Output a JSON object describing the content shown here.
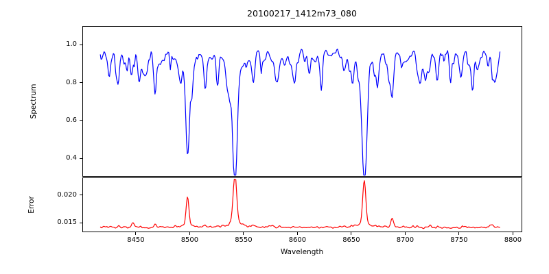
{
  "figure": {
    "background": "#ffffff",
    "text_color": "#000000",
    "spine_color": "#000000"
  },
  "chart_data": {
    "type": "line",
    "title": "20100217_1412m73_080",
    "xlabel": "Wavelength",
    "legend": "none",
    "grid": false,
    "seed": 42,
    "x": {
      "range": [
        8401,
        8808
      ],
      "data_range": [
        8417,
        8788
      ],
      "ticks": [
        {
          "v": 8450,
          "label": "8450"
        },
        {
          "v": 8500,
          "label": "8500"
        },
        {
          "v": 8550,
          "label": "8550"
        },
        {
          "v": 8600,
          "label": "8600"
        },
        {
          "v": 8650,
          "label": "8650"
        },
        {
          "v": 8700,
          "label": "8700"
        },
        {
          "v": 8750,
          "label": "8750"
        },
        {
          "v": 8800,
          "label": "8800"
        }
      ]
    },
    "panels": [
      {
        "id": "spectrum",
        "ylabel": "Spectrum",
        "line_color": "#0000ff",
        "ylim": [
          0.303,
          1.095
        ],
        "y_ticks": [
          {
            "v": 1.0,
            "label": "1.0"
          },
          {
            "v": 0.8,
            "label": "0.8"
          },
          {
            "v": 0.6,
            "label": "0.6"
          },
          {
            "v": 0.4,
            "label": "0.4"
          }
        ],
        "continuum": 0.965,
        "noise_sigma": 0.013,
        "weak_line_forest": {
          "count": 130,
          "depth_min": 0.02,
          "depth_max": 0.13,
          "width_min": 0.6,
          "width_max": 1.8
        },
        "absorption_lines": [
          {
            "center": 8425,
            "depth": 0.09,
            "width": 1.1,
            "wing": 0
          },
          {
            "center": 8434,
            "depth": 0.115,
            "width": 1.1,
            "wing": 0
          },
          {
            "center": 8446,
            "depth": 0.13,
            "width": 1.2,
            "wing": 0
          },
          {
            "center": 8453,
            "depth": 0.135,
            "width": 1.1,
            "wing": 0
          },
          {
            "center": 8468,
            "depth": 0.185,
            "width": 1.4,
            "wing": 0
          },
          {
            "center": 8491,
            "depth": 0.1,
            "width": 1.1,
            "wing": 0
          },
          {
            "center": 8498,
            "depth": 0.485,
            "width": 1.7,
            "wing": 0.12
          },
          {
            "center": 8514,
            "depth": 0.13,
            "width": 1.2,
            "wing": 0
          },
          {
            "center": 8526,
            "depth": 0.08,
            "width": 1.0,
            "wing": 0
          },
          {
            "center": 8542,
            "depth": 0.63,
            "width": 2.1,
            "wing": 0.12
          },
          {
            "center": 8582,
            "depth": 0.11,
            "width": 1.2,
            "wing": 0
          },
          {
            "center": 8598,
            "depth": 0.08,
            "width": 1.0,
            "wing": 0
          },
          {
            "center": 8611,
            "depth": 0.12,
            "width": 1.2,
            "wing": 0
          },
          {
            "center": 8622,
            "depth": 0.1,
            "width": 1.1,
            "wing": 0
          },
          {
            "center": 8648,
            "depth": 0.07,
            "width": 1.0,
            "wing": 0
          },
          {
            "center": 8662,
            "depth": 0.605,
            "width": 1.9,
            "wing": 0.12
          },
          {
            "center": 8674,
            "depth": 0.11,
            "width": 1.1,
            "wing": 0
          },
          {
            "center": 8688,
            "depth": 0.21,
            "width": 1.4,
            "wing": 0
          },
          {
            "center": 8713,
            "depth": 0.09,
            "width": 1.1,
            "wing": 0
          },
          {
            "center": 8730,
            "depth": 0.07,
            "width": 1.0,
            "wing": 0
          },
          {
            "center": 8742,
            "depth": 0.08,
            "width": 1.0,
            "wing": 0
          },
          {
            "center": 8763,
            "depth": 0.08,
            "width": 1.0,
            "wing": 0
          },
          {
            "center": 8777,
            "depth": 0.09,
            "width": 1.0,
            "wing": 0
          }
        ]
      },
      {
        "id": "error",
        "ylabel": "Error",
        "line_color": "#ff0000",
        "ylim": [
          0.0134,
          0.0231
        ],
        "y_ticks": [
          {
            "v": 0.02,
            "label": "0.020"
          },
          {
            "v": 0.015,
            "label": "0.015"
          }
        ],
        "baseline": 0.0141,
        "noise_sigma": 0.00012,
        "bump_forest": {
          "count": 60,
          "height_min": 8e-05,
          "height_max": 0.0004,
          "width_min": 0.6,
          "width_max": 1.6
        },
        "peaks": [
          {
            "center": 8447,
            "height": 0.0006,
            "width": 1.0
          },
          {
            "center": 8468,
            "height": 0.0005,
            "width": 1.0
          },
          {
            "center": 8498,
            "height": 0.0047,
            "width": 1.3
          },
          {
            "center": 8514,
            "height": 0.0004,
            "width": 1.0
          },
          {
            "center": 8542,
            "height": 0.0088,
            "width": 1.6
          },
          {
            "center": 8662,
            "height": 0.0075,
            "width": 1.4
          },
          {
            "center": 8688,
            "height": 0.0015,
            "width": 1.1
          }
        ]
      }
    ]
  }
}
